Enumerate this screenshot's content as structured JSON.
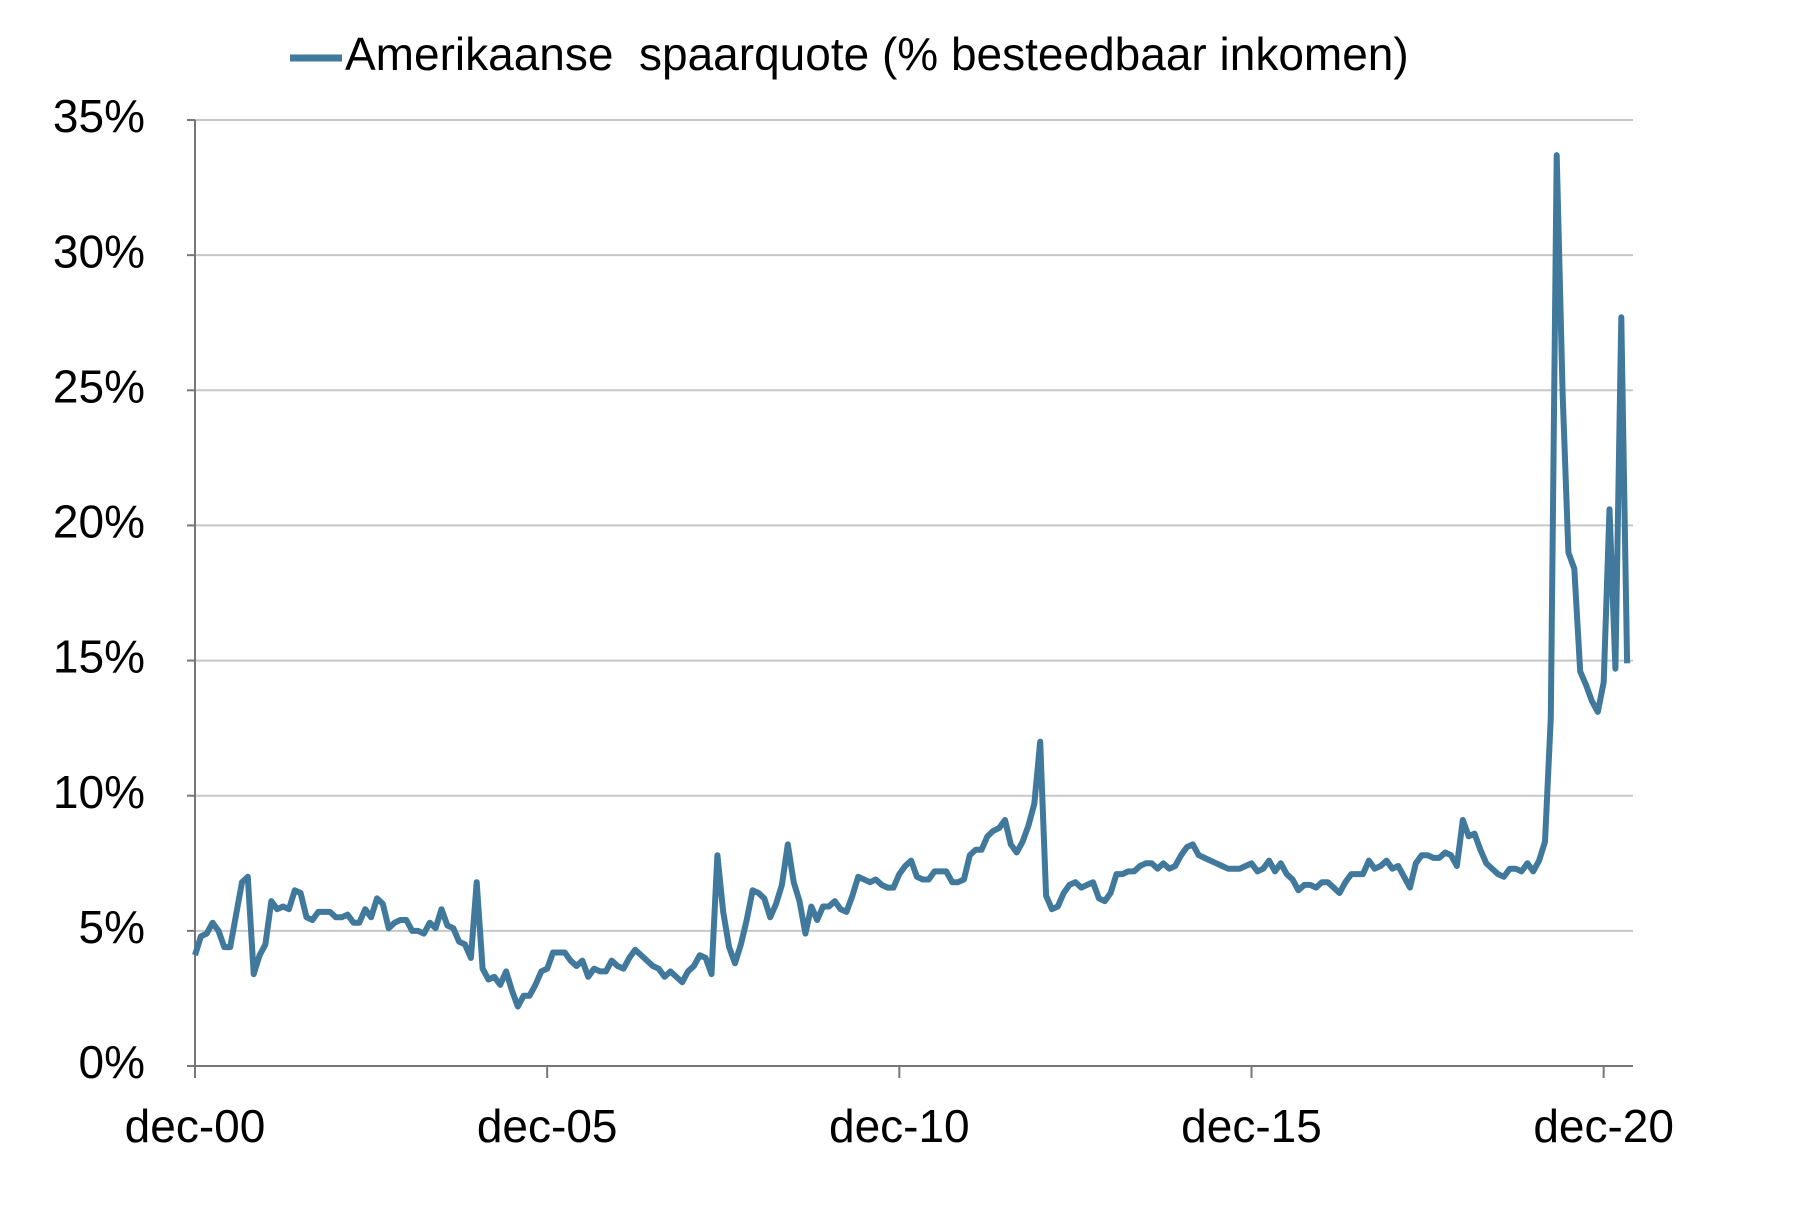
{
  "chart_data": {
    "type": "line",
    "categories": [
      "dec-00",
      null,
      null,
      null,
      null,
      null,
      null,
      null,
      null,
      null,
      null,
      null,
      null,
      null,
      null,
      null,
      null,
      null,
      null,
      null,
      null,
      null,
      null,
      null,
      null,
      null,
      null,
      null,
      null,
      null,
      null,
      null,
      null,
      null,
      null,
      null,
      null,
      null,
      null,
      null,
      null,
      null,
      null,
      null,
      null,
      null,
      null,
      null,
      null,
      null,
      null,
      null,
      null,
      null,
      null,
      null,
      null,
      null,
      null,
      null,
      "dec-05",
      null,
      null,
      null,
      null,
      null,
      null,
      null,
      null,
      null,
      null,
      null,
      null,
      null,
      null,
      null,
      null,
      null,
      null,
      null,
      null,
      null,
      null,
      null,
      null,
      null,
      null,
      null,
      null,
      null,
      null,
      null,
      null,
      null,
      null,
      null,
      null,
      null,
      null,
      null,
      null,
      null,
      null,
      null,
      null,
      null,
      null,
      null,
      null,
      null,
      null,
      null,
      null,
      null,
      null,
      null,
      null,
      null,
      null,
      null,
      "dec-10",
      null,
      null,
      null,
      null,
      null,
      null,
      null,
      null,
      null,
      null,
      null,
      null,
      null,
      null,
      null,
      null,
      null,
      null,
      null,
      null,
      null,
      null,
      null,
      null,
      null,
      null,
      null,
      null,
      null,
      null,
      null,
      null,
      null,
      null,
      null,
      null,
      null,
      null,
      null,
      null,
      null,
      null,
      null,
      null,
      null,
      null,
      null,
      null,
      null,
      null,
      null,
      null,
      null,
      null,
      null,
      null,
      null,
      null,
      null,
      "dec-15",
      null,
      null,
      null,
      null,
      null,
      null,
      null,
      null,
      null,
      null,
      null,
      null,
      null,
      null,
      null,
      null,
      null,
      null,
      null,
      null,
      null,
      null,
      null,
      null,
      null,
      null,
      null,
      null,
      null,
      null,
      null,
      null,
      null,
      null,
      null,
      null,
      null,
      null,
      null,
      null,
      null,
      null,
      null,
      null,
      null,
      null,
      null,
      null,
      null,
      null,
      null,
      null,
      null,
      null,
      null,
      null,
      null,
      null,
      null,
      "dec-20",
      null,
      null,
      null,
      null
    ],
    "series": [
      {
        "name": "Amerikaanse  spaarquote (% besteedbaar inkomen)",
        "color": "#41799c",
        "values": [
          4.1,
          4.8,
          4.9,
          5.3,
          5.0,
          4.4,
          4.4,
          5.6,
          6.8,
          7.0,
          3.4,
          4.1,
          4.5,
          6.1,
          5.8,
          5.9,
          5.8,
          6.5,
          6.4,
          5.5,
          5.4,
          5.7,
          5.7,
          5.7,
          5.5,
          5.5,
          5.6,
          5.3,
          5.3,
          5.8,
          5.5,
          6.2,
          6.0,
          5.1,
          5.3,
          5.4,
          5.4,
          5.0,
          5.0,
          4.9,
          5.3,
          5.1,
          5.8,
          5.2,
          5.1,
          4.6,
          4.5,
          4.0,
          6.8,
          3.6,
          3.2,
          3.3,
          3.0,
          3.5,
          2.8,
          2.2,
          2.6,
          2.6,
          3.0,
          3.5,
          3.6,
          4.2,
          4.2,
          4.2,
          3.9,
          3.7,
          3.9,
          3.3,
          3.6,
          3.5,
          3.5,
          3.9,
          3.7,
          3.6,
          4.0,
          4.3,
          4.1,
          3.9,
          3.7,
          3.6,
          3.3,
          3.5,
          3.3,
          3.1,
          3.5,
          3.7,
          4.1,
          4.0,
          3.4,
          7.8,
          5.7,
          4.4,
          3.8,
          4.5,
          5.4,
          6.5,
          6.4,
          6.2,
          5.5,
          6.0,
          6.7,
          8.2,
          6.8,
          6.1,
          4.9,
          5.9,
          5.4,
          5.9,
          5.9,
          6.1,
          5.8,
          5.7,
          6.3,
          7.0,
          6.9,
          6.8,
          6.9,
          6.7,
          6.6,
          6.6,
          7.1,
          7.4,
          7.6,
          7.0,
          6.9,
          6.9,
          7.2,
          7.2,
          7.2,
          6.8,
          6.8,
          6.9,
          7.8,
          8.0,
          8.0,
          8.5,
          8.7,
          8.8,
          9.1,
          8.2,
          7.9,
          8.3,
          8.9,
          9.7,
          12.0,
          6.3,
          5.8,
          5.9,
          6.4,
          6.7,
          6.8,
          6.6,
          6.7,
          6.8,
          6.2,
          6.1,
          6.4,
          7.1,
          7.1,
          7.2,
          7.2,
          7.4,
          7.5,
          7.5,
          7.3,
          7.5,
          7.3,
          7.4,
          7.8,
          8.1,
          8.2,
          7.8,
          7.7,
          7.6,
          7.5,
          7.4,
          7.3,
          7.3,
          7.3,
          7.4,
          7.5,
          7.2,
          7.3,
          7.6,
          7.2,
          7.5,
          7.1,
          6.9,
          6.5,
          6.7,
          6.7,
          6.6,
          6.8,
          6.8,
          6.6,
          6.4,
          6.8,
          7.1,
          7.1,
          7.1,
          7.6,
          7.3,
          7.4,
          7.6,
          7.3,
          7.4,
          7.0,
          6.6,
          7.5,
          7.8,
          7.8,
          7.7,
          7.7,
          7.9,
          7.8,
          7.4,
          9.1,
          8.5,
          8.6,
          8.0,
          7.5,
          7.3,
          7.1,
          7.0,
          7.3,
          7.3,
          7.2,
          7.5,
          7.2,
          7.6,
          8.3,
          12.9,
          33.7,
          24.9,
          19.0,
          18.4,
          14.6,
          14.1,
          13.5,
          13.1,
          14.2,
          20.6,
          14.7,
          27.7,
          14.9
        ]
      }
    ],
    "ylim": [
      0,
      35
    ],
    "yticks": [
      {
        "value": 0,
        "label": "0%"
      },
      {
        "value": 5,
        "label": "5%"
      },
      {
        "value": 10,
        "label": "10%"
      },
      {
        "value": 15,
        "label": "15%"
      },
      {
        "value": 20,
        "label": "20%"
      },
      {
        "value": 25,
        "label": "25%"
      },
      {
        "value": 30,
        "label": "30%"
      },
      {
        "value": 35,
        "label": "35%"
      }
    ],
    "grid": true,
    "legend": "top"
  }
}
